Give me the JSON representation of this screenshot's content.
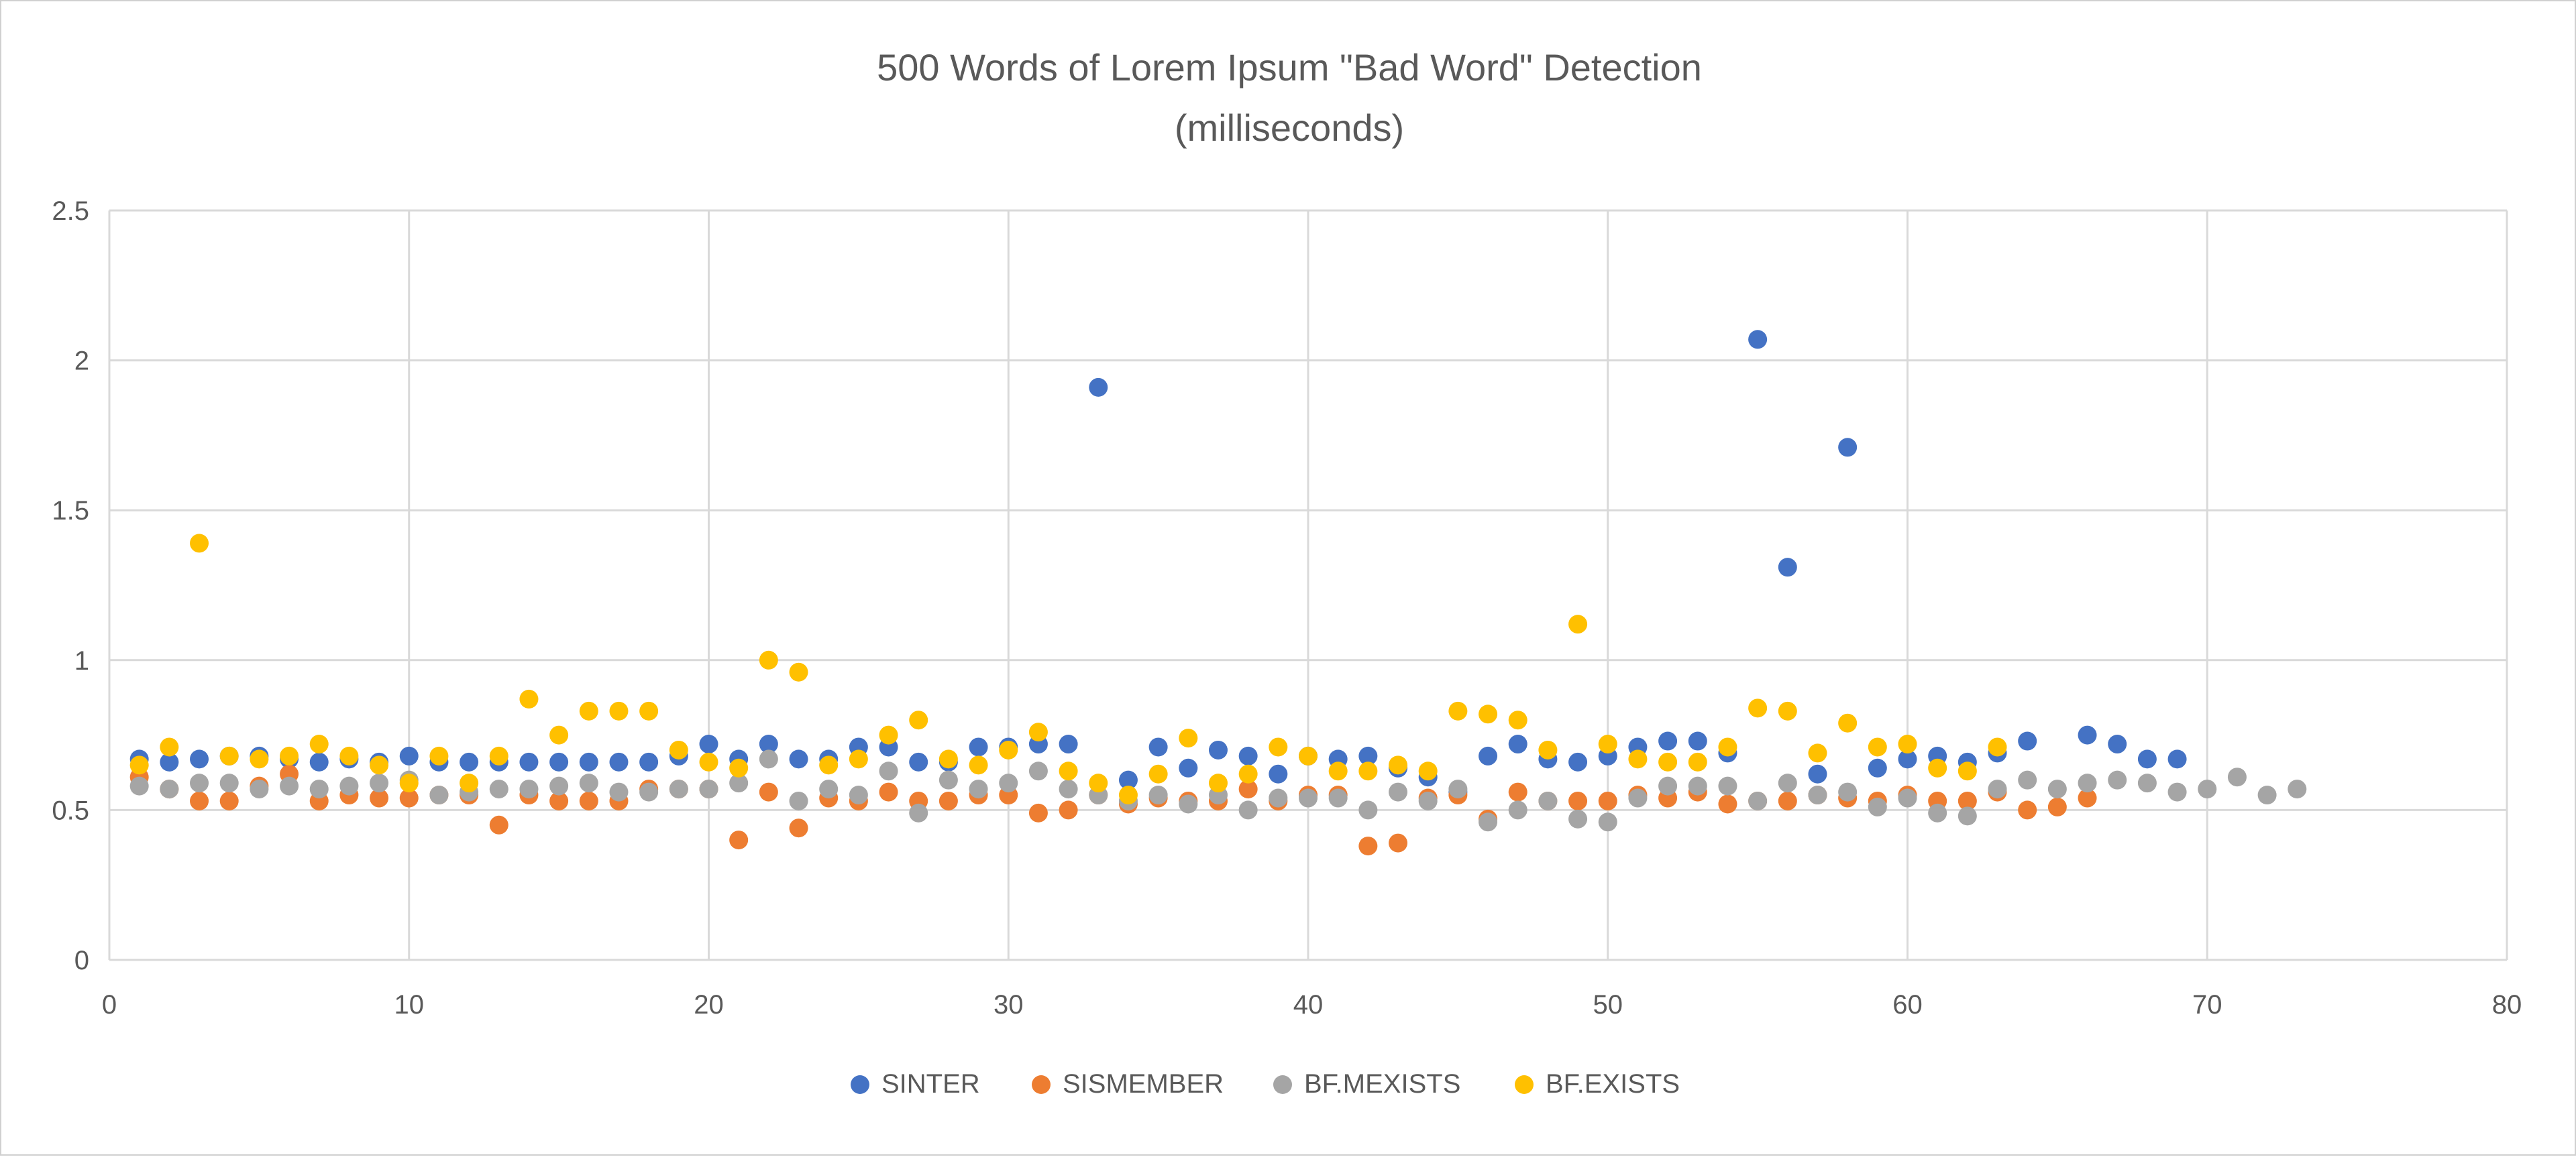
{
  "chart_data": {
    "type": "scatter",
    "title": "500 Words of Lorem Ipsum \"Bad Word\" Detection",
    "subtitle": "(milliseconds)",
    "xlabel": "",
    "ylabel": "",
    "xlim": [
      0,
      80
    ],
    "ylim": [
      0,
      2.5
    ],
    "x_ticks": [
      0,
      10,
      20,
      30,
      40,
      50,
      60,
      70,
      80
    ],
    "y_ticks": [
      0,
      0.5,
      1,
      1.5,
      2,
      2.5
    ],
    "y_tick_labels": [
      "0",
      "0.5",
      "1",
      "1.5",
      "2",
      "2.5"
    ],
    "grid": true,
    "legend_position": "bottom",
    "series": [
      {
        "name": "SINTER",
        "color": "#4472C4",
        "points": [
          [
            1,
            0.67
          ],
          [
            2,
            0.66
          ],
          [
            3,
            0.67
          ],
          [
            4,
            0.68
          ],
          [
            5,
            0.68
          ],
          [
            6,
            0.67
          ],
          [
            7,
            0.66
          ],
          [
            8,
            0.67
          ],
          [
            9,
            0.66
          ],
          [
            10,
            0.68
          ],
          [
            11,
            0.66
          ],
          [
            12,
            0.66
          ],
          [
            13,
            0.66
          ],
          [
            14,
            0.66
          ],
          [
            15,
            0.66
          ],
          [
            16,
            0.66
          ],
          [
            17,
            0.66
          ],
          [
            18,
            0.66
          ],
          [
            19,
            0.68
          ],
          [
            20,
            0.72
          ],
          [
            21,
            0.67
          ],
          [
            22,
            0.72
          ],
          [
            23,
            0.67
          ],
          [
            24,
            0.67
          ],
          [
            25,
            0.71
          ],
          [
            26,
            0.71
          ],
          [
            27,
            0.66
          ],
          [
            28,
            0.66
          ],
          [
            29,
            0.71
          ],
          [
            30,
            0.71
          ],
          [
            31,
            0.72
          ],
          [
            32,
            0.72
          ],
          [
            33,
            1.91
          ],
          [
            34,
            0.6
          ],
          [
            35,
            0.71
          ],
          [
            36,
            0.64
          ],
          [
            37,
            0.7
          ],
          [
            38,
            0.68
          ],
          [
            39,
            0.62
          ],
          [
            40,
            0.68
          ],
          [
            41,
            0.67
          ],
          [
            42,
            0.68
          ],
          [
            43,
            0.64
          ],
          [
            44,
            0.61
          ],
          [
            45,
            0.56
          ],
          [
            46,
            0.68
          ],
          [
            47,
            0.72
          ],
          [
            48,
            0.67
          ],
          [
            49,
            0.66
          ],
          [
            50,
            0.68
          ],
          [
            51,
            0.71
          ],
          [
            52,
            0.73
          ],
          [
            53,
            0.73
          ],
          [
            54,
            0.69
          ],
          [
            55,
            2.07
          ],
          [
            56,
            1.31
          ],
          [
            57,
            0.62
          ],
          [
            58,
            1.71
          ],
          [
            59,
            0.64
          ],
          [
            60,
            0.67
          ],
          [
            61,
            0.68
          ],
          [
            62,
            0.66
          ],
          [
            63,
            0.69
          ],
          [
            64,
            0.73
          ],
          [
            66,
            0.75
          ],
          [
            67,
            0.72
          ],
          [
            68,
            0.67
          ],
          [
            69,
            0.67
          ]
        ]
      },
      {
        "name": "SISMEMBER",
        "color": "#ED7D31",
        "points": [
          [
            1,
            0.61
          ],
          [
            2,
            0.57
          ],
          [
            3,
            0.53
          ],
          [
            4,
            0.53
          ],
          [
            5,
            0.58
          ],
          [
            6,
            0.62
          ],
          [
            7,
            0.53
          ],
          [
            8,
            0.55
          ],
          [
            9,
            0.54
          ],
          [
            10,
            0.54
          ],
          [
            11,
            0.55
          ],
          [
            12,
            0.55
          ],
          [
            13,
            0.45
          ],
          [
            14,
            0.55
          ],
          [
            15,
            0.53
          ],
          [
            16,
            0.53
          ],
          [
            17,
            0.53
          ],
          [
            18,
            0.57
          ],
          [
            19,
            0.57
          ],
          [
            20,
            0.57
          ],
          [
            21,
            0.4
          ],
          [
            22,
            0.56
          ],
          [
            23,
            0.44
          ],
          [
            24,
            0.54
          ],
          [
            25,
            0.53
          ],
          [
            26,
            0.56
          ],
          [
            27,
            0.53
          ],
          [
            28,
            0.53
          ],
          [
            29,
            0.55
          ],
          [
            30,
            0.55
          ],
          [
            31,
            0.49
          ],
          [
            32,
            0.5
          ],
          [
            33,
            0.55
          ],
          [
            34,
            0.52
          ],
          [
            35,
            0.54
          ],
          [
            36,
            0.53
          ],
          [
            37,
            0.53
          ],
          [
            38,
            0.57
          ],
          [
            39,
            0.53
          ],
          [
            40,
            0.55
          ],
          [
            41,
            0.55
          ],
          [
            42,
            0.38
          ],
          [
            43,
            0.39
          ],
          [
            44,
            0.54
          ],
          [
            45,
            0.55
          ],
          [
            46,
            0.47
          ],
          [
            47,
            0.56
          ],
          [
            48,
            0.53
          ],
          [
            49,
            0.53
          ],
          [
            50,
            0.53
          ],
          [
            51,
            0.55
          ],
          [
            52,
            0.54
          ],
          [
            53,
            0.56
          ],
          [
            54,
            0.52
          ],
          [
            55,
            0.53
          ],
          [
            56,
            0.53
          ],
          [
            57,
            0.55
          ],
          [
            58,
            0.54
          ],
          [
            59,
            0.53
          ],
          [
            60,
            0.55
          ],
          [
            61,
            0.53
          ],
          [
            62,
            0.53
          ],
          [
            63,
            0.56
          ],
          [
            64,
            0.5
          ],
          [
            65,
            0.51
          ],
          [
            66,
            0.54
          ]
        ]
      },
      {
        "name": "BF.MEXISTS",
        "color": "#A5A5A5",
        "points": [
          [
            1,
            0.58
          ],
          [
            2,
            0.57
          ],
          [
            3,
            0.59
          ],
          [
            4,
            0.59
          ],
          [
            5,
            0.57
          ],
          [
            6,
            0.58
          ],
          [
            7,
            0.57
          ],
          [
            8,
            0.58
          ],
          [
            9,
            0.59
          ],
          [
            10,
            0.6
          ],
          [
            11,
            0.55
          ],
          [
            12,
            0.56
          ],
          [
            13,
            0.57
          ],
          [
            14,
            0.57
          ],
          [
            15,
            0.58
          ],
          [
            16,
            0.59
          ],
          [
            17,
            0.56
          ],
          [
            18,
            0.56
          ],
          [
            19,
            0.57
          ],
          [
            20,
            0.57
          ],
          [
            21,
            0.59
          ],
          [
            22,
            0.67
          ],
          [
            23,
            0.53
          ],
          [
            24,
            0.57
          ],
          [
            25,
            0.55
          ],
          [
            26,
            0.63
          ],
          [
            27,
            0.49
          ],
          [
            28,
            0.6
          ],
          [
            29,
            0.57
          ],
          [
            30,
            0.59
          ],
          [
            31,
            0.63
          ],
          [
            32,
            0.57
          ],
          [
            33,
            0.55
          ],
          [
            34,
            0.53
          ],
          [
            35,
            0.55
          ],
          [
            36,
            0.52
          ],
          [
            37,
            0.55
          ],
          [
            38,
            0.5
          ],
          [
            39,
            0.54
          ],
          [
            40,
            0.54
          ],
          [
            41,
            0.54
          ],
          [
            42,
            0.5
          ],
          [
            43,
            0.56
          ],
          [
            44,
            0.53
          ],
          [
            45,
            0.57
          ],
          [
            46,
            0.46
          ],
          [
            47,
            0.5
          ],
          [
            48,
            0.53
          ],
          [
            49,
            0.47
          ],
          [
            50,
            0.46
          ],
          [
            51,
            0.54
          ],
          [
            52,
            0.58
          ],
          [
            53,
            0.58
          ],
          [
            54,
            0.58
          ],
          [
            55,
            0.53
          ],
          [
            56,
            0.59
          ],
          [
            57,
            0.55
          ],
          [
            58,
            0.56
          ],
          [
            59,
            0.51
          ],
          [
            60,
            0.54
          ],
          [
            61,
            0.49
          ],
          [
            62,
            0.48
          ],
          [
            63,
            0.57
          ],
          [
            64,
            0.6
          ],
          [
            65,
            0.57
          ],
          [
            66,
            0.59
          ],
          [
            67,
            0.6
          ],
          [
            68,
            0.59
          ],
          [
            69,
            0.56
          ],
          [
            70,
            0.57
          ],
          [
            71,
            0.61
          ],
          [
            72,
            0.55
          ],
          [
            73,
            0.57
          ]
        ]
      },
      {
        "name": "BF.EXISTS",
        "color": "#FFC000",
        "points": [
          [
            1,
            0.65
          ],
          [
            2,
            0.71
          ],
          [
            3,
            1.39
          ],
          [
            4,
            0.68
          ],
          [
            5,
            0.67
          ],
          [
            6,
            0.68
          ],
          [
            7,
            0.72
          ],
          [
            8,
            0.68
          ],
          [
            9,
            0.65
          ],
          [
            10,
            0.59
          ],
          [
            11,
            0.68
          ],
          [
            12,
            0.59
          ],
          [
            13,
            0.68
          ],
          [
            14,
            0.87
          ],
          [
            15,
            0.75
          ],
          [
            16,
            0.83
          ],
          [
            17,
            0.83
          ],
          [
            18,
            0.83
          ],
          [
            19,
            0.7
          ],
          [
            20,
            0.66
          ],
          [
            21,
            0.64
          ],
          [
            22,
            1.0
          ],
          [
            23,
            0.96
          ],
          [
            24,
            0.65
          ],
          [
            25,
            0.67
          ],
          [
            26,
            0.75
          ],
          [
            27,
            0.8
          ],
          [
            28,
            0.67
          ],
          [
            29,
            0.65
          ],
          [
            30,
            0.7
          ],
          [
            31,
            0.76
          ],
          [
            32,
            0.63
          ],
          [
            33,
            0.59
          ],
          [
            34,
            0.55
          ],
          [
            35,
            0.62
          ],
          [
            36,
            0.74
          ],
          [
            37,
            0.59
          ],
          [
            38,
            0.62
          ],
          [
            39,
            0.71
          ],
          [
            40,
            0.68
          ],
          [
            41,
            0.63
          ],
          [
            42,
            0.63
          ],
          [
            43,
            0.65
          ],
          [
            44,
            0.63
          ],
          [
            45,
            0.83
          ],
          [
            46,
            0.82
          ],
          [
            47,
            0.8
          ],
          [
            48,
            0.7
          ],
          [
            49,
            1.12
          ],
          [
            50,
            0.72
          ],
          [
            51,
            0.67
          ],
          [
            52,
            0.66
          ],
          [
            53,
            0.66
          ],
          [
            54,
            0.71
          ],
          [
            55,
            0.84
          ],
          [
            56,
            0.83
          ],
          [
            57,
            0.69
          ],
          [
            58,
            0.79
          ],
          [
            59,
            0.71
          ],
          [
            60,
            0.72
          ],
          [
            61,
            0.64
          ],
          [
            62,
            0.63
          ],
          [
            63,
            0.71
          ]
        ]
      }
    ]
  }
}
